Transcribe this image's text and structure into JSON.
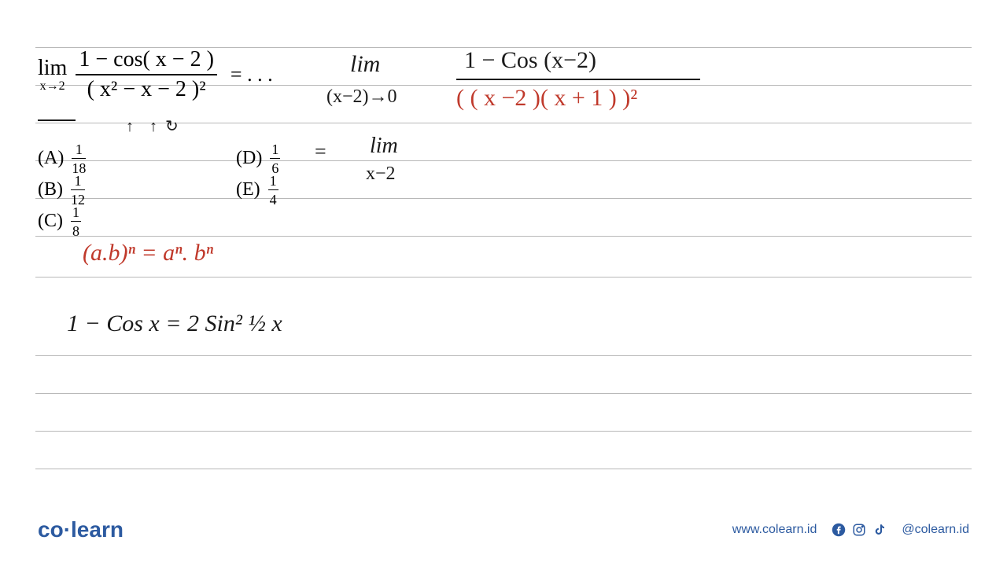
{
  "colors": {
    "background": "#ffffff",
    "ruled_line": "#b8b8b8",
    "print_black": "#000000",
    "hand_black": "#1a1a1a",
    "hand_red": "#c0392b",
    "hand_blue": "#2c5aa0",
    "brand_blue": "#2c5aa0"
  },
  "ruled_lines_y": [
    60,
    108,
    156,
    204,
    252,
    300,
    352,
    452,
    500,
    548,
    596
  ],
  "problem": {
    "limit_label": "lim",
    "limit_sub": "x→2",
    "numerator": "1 − cos( x − 2 )",
    "denominator": "( x² − x − 2 )²",
    "equals": "= . . ."
  },
  "choices": {
    "A": {
      "label": "(A)",
      "num": "1",
      "den": "18"
    },
    "B": {
      "label": "(B)",
      "num": "1",
      "den": "12"
    },
    "C": {
      "label": "(C)",
      "num": "1",
      "den": "8"
    },
    "D": {
      "label": "(D)",
      "num": "1",
      "den": "6"
    },
    "E": {
      "label": "(E)",
      "num": "1",
      "den": "4"
    }
  },
  "handwriting": {
    "lim1": "lim",
    "lim1_sub": "(x−2)→0",
    "work_num": "1 − Cos (x−2)",
    "work_den": "( ( x   −2 )( x + 1 ) )²",
    "eq": "=",
    "lim2": "lim",
    "lim2_sub": "x−2",
    "exp_rule": "(a.b)ⁿ = aⁿ. bⁿ",
    "trig_identity": "1 −  Cos x =  2 Sin² ½ x",
    "arrow1": "↑",
    "arrow2": "↑",
    "arrow3": "↻",
    "underline_x2": "___"
  },
  "footer": {
    "logo_pre": "co",
    "logo_dot": "·",
    "logo_post": "learn",
    "url": "www.colearn.id",
    "handle": "@colearn.id"
  },
  "typography": {
    "print_fontsize": 28,
    "choice_fontsize": 24,
    "hand_fontsize": 26,
    "footer_fontsize": 16,
    "logo_fontsize": 28
  }
}
